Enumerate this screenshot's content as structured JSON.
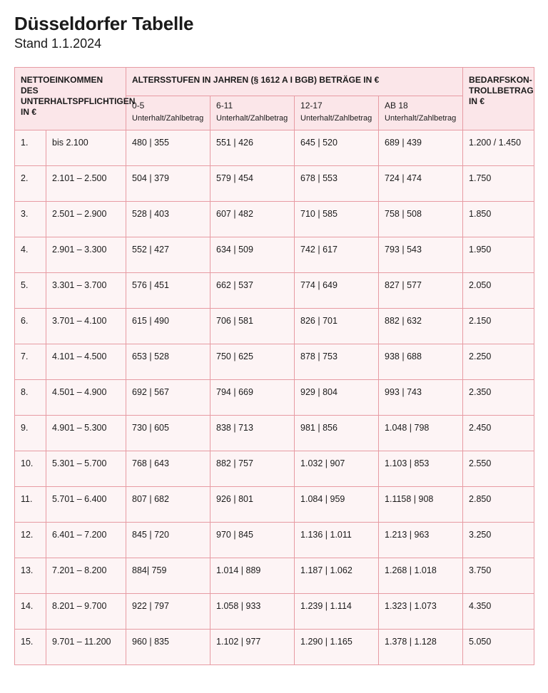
{
  "title": "Düsseldorfer Tabelle",
  "subtitle": "Stand 1.1.2024",
  "colors": {
    "header_bg": "#fbe6e9",
    "body_bg": "#fdf4f5",
    "border": "#e79ba3",
    "text": "#1a1a1a"
  },
  "table": {
    "header_income": "NETTOEINKOMMEN DES UNTERHALTSPFLICHTIGEN IN €",
    "header_agelevels": "ALTERSSTUFEN IN JAHREN (§ 1612 A I BGB) BETRÄGE IN €",
    "header_control": "BEDARFSKON-TROLLBETRAG IN €",
    "sublabel": "Unterhalt/Zahlbetrag",
    "age_groups": [
      "0-5",
      "6-11",
      "12-17",
      "AB 18"
    ],
    "rows": [
      {
        "n": "1.",
        "income": "bis 2.100",
        "a": "480 | 355",
        "b": "551 | 426",
        "c": "645 | 520",
        "d": "689 | 439",
        "ctrl": "1.200 / 1.450"
      },
      {
        "n": "2.",
        "income": "2.101 – 2.500",
        "a": "504 | 379",
        "b": "579 | 454",
        "c": "678 | 553",
        "d": "724 | 474",
        "ctrl": "1.750"
      },
      {
        "n": "3.",
        "income": "2.501 – 2.900",
        "a": "528 | 403",
        "b": "607 | 482",
        "c": "710 | 585",
        "d": "758 | 508",
        "ctrl": "1.850"
      },
      {
        "n": "4.",
        "income": "2.901 – 3.300",
        "a": "552 | 427",
        "b": "634 | 509",
        "c": "742 | 617",
        "d": "793 | 543",
        "ctrl": "1.950"
      },
      {
        "n": "5.",
        "income": "3.301 – 3.700",
        "a": "576 | 451",
        "b": "662 | 537",
        "c": "774 | 649",
        "d": "827 | 577",
        "ctrl": "2.050"
      },
      {
        "n": "6.",
        "income": "3.701 – 4.100",
        "a": "615 | 490",
        "b": "706 | 581",
        "c": "826 | 701",
        "d": "882 | 632",
        "ctrl": "2.150"
      },
      {
        "n": "7.",
        "income": "4.101 – 4.500",
        "a": "653 | 528",
        "b": "750 | 625",
        "c": "878 | 753",
        "d": "938 | 688",
        "ctrl": "2.250"
      },
      {
        "n": "8.",
        "income": "4.501 – 4.900",
        "a": "692 | 567",
        "b": "794 | 669",
        "c": "929 | 804",
        "d": "993 | 743",
        "ctrl": "2.350"
      },
      {
        "n": "9.",
        "income": "4.901 – 5.300",
        "a": "730 | 605",
        "b": "838 | 713",
        "c": "981 | 856",
        "d": "1.048 | 798",
        "ctrl": "2.450"
      },
      {
        "n": "10.",
        "income": "5.301 – 5.700",
        "a": "768 | 643",
        "b": "882 | 757",
        "c": "1.032 | 907",
        "d": "1.103 | 853",
        "ctrl": "2.550"
      },
      {
        "n": "11.",
        "income": "5.701 – 6.400",
        "a": "807 | 682",
        "b": "926 | 801",
        "c": "1.084 | 959",
        "d": "1.1158 | 908",
        "ctrl": "2.850"
      },
      {
        "n": "12.",
        "income": "6.401 – 7.200",
        "a": "845 | 720",
        "b": "970 | 845",
        "c": "1.136 | 1.011",
        "d": "1.213 | 963",
        "ctrl": "3.250"
      },
      {
        "n": "13.",
        "income": "7.201 – 8.200",
        "a": "884| 759",
        "b": "1.014 | 889",
        "c": "1.187 | 1.062",
        "d": "1.268 | 1.018",
        "ctrl": "3.750"
      },
      {
        "n": "14.",
        "income": "8.201 – 9.700",
        "a": "922 | 797",
        "b": "1.058 | 933",
        "c": "1.239 | 1.114",
        "d": "1.323 | 1.073",
        "ctrl": "4.350"
      },
      {
        "n": "15.",
        "income": "9.701 – 11.200",
        "a": "960 | 835",
        "b": "1.102 | 977",
        "c": "1.290 | 1.165",
        "d": "1.378 | 1.128",
        "ctrl": "5.050"
      }
    ]
  }
}
